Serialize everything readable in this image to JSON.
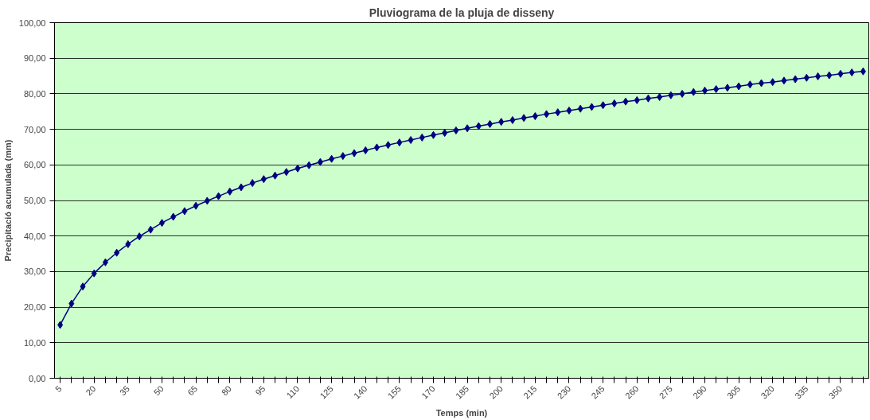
{
  "chart_data": {
    "type": "line",
    "title": "Pluviograma de la pluja de disseny",
    "xlabel": "Temps (min)",
    "ylabel": "Precipitació acumulada (mm)",
    "categories": [
      "5",
      null,
      null,
      "20",
      null,
      null,
      "35",
      null,
      null,
      "50",
      null,
      null,
      "65",
      null,
      null,
      "80",
      null,
      null,
      "95",
      null,
      null,
      "110",
      null,
      null,
      "125",
      null,
      null,
      "140",
      null,
      null,
      "155",
      null,
      null,
      "170",
      null,
      null,
      "185",
      null,
      null,
      "200",
      null,
      null,
      "215",
      null,
      null,
      "230",
      null,
      null,
      "245",
      null,
      null,
      "260",
      null,
      null,
      "275",
      null,
      null,
      "290",
      null,
      null,
      "305",
      null,
      null,
      "320",
      null,
      null,
      "335",
      null,
      null,
      "350",
      null,
      null
    ],
    "series": [
      {
        "color": "#000080",
        "values": [
          15.0,
          21.0,
          25.8,
          29.5,
          32.6,
          35.3,
          37.7,
          39.9,
          41.8,
          43.7,
          45.4,
          47.0,
          48.5,
          49.9,
          51.2,
          52.5,
          53.7,
          54.9,
          56.0,
          57.0,
          58.0,
          59.0,
          59.9,
          60.8,
          61.7,
          62.5,
          63.3,
          64.1,
          64.9,
          65.6,
          66.3,
          67.0,
          67.7,
          68.4,
          69.0,
          69.7,
          70.3,
          70.9,
          71.5,
          72.1,
          72.6,
          73.2,
          73.7,
          74.3,
          74.8,
          75.3,
          75.8,
          76.3,
          76.8,
          77.3,
          77.8,
          78.2,
          78.7,
          79.1,
          79.6,
          80.0,
          80.5,
          80.9,
          81.3,
          81.7,
          82.1,
          82.6,
          83.0,
          83.3,
          83.7,
          84.1,
          84.5,
          84.9,
          85.2,
          85.6,
          86.0,
          86.3
        ]
      }
    ],
    "ylim": [
      0,
      100
    ],
    "yticks": [
      {
        "value": 0,
        "label": "0,00"
      },
      {
        "value": 10,
        "label": "10,00"
      },
      {
        "value": 20,
        "label": "20,00"
      },
      {
        "value": 30,
        "label": "30,00"
      },
      {
        "value": 40,
        "label": "40,00"
      },
      {
        "value": 50,
        "label": "50,00"
      },
      {
        "value": 60,
        "label": "60,00"
      },
      {
        "value": 70,
        "label": "70,00"
      },
      {
        "value": 80,
        "label": "80,00"
      },
      {
        "value": 90,
        "label": "90,00"
      },
      {
        "value": 100,
        "label": "100,00"
      }
    ],
    "grid": "y",
    "marker": "diamond",
    "line_style": "solid"
  }
}
